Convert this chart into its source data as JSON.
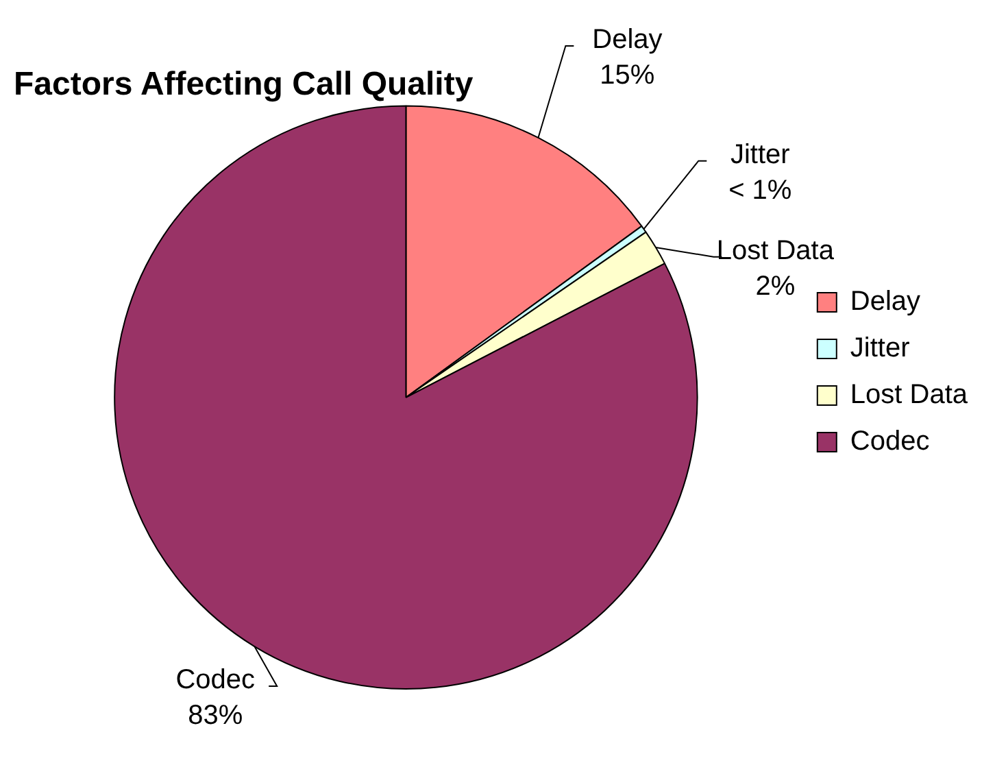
{
  "chart_data": {
    "type": "pie",
    "title": "Factors Affecting Call Quality",
    "categories": [
      "Delay",
      "Jitter",
      "Lost Data",
      "Codec"
    ],
    "values": [
      15,
      0.4,
      2,
      82.6
    ],
    "value_labels": [
      "15%",
      "< 1%",
      "2%",
      "83%"
    ],
    "colors": [
      "#ff8080",
      "#ccffff",
      "#ffffcc",
      "#993366"
    ],
    "legend": "right"
  }
}
